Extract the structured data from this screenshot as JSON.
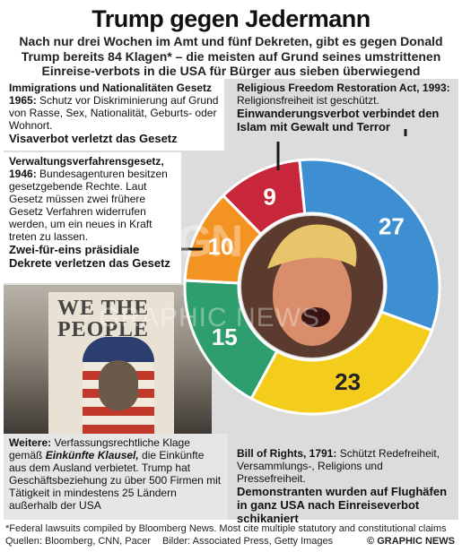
{
  "header": {
    "title": "Trump gegen Jedermann",
    "subtitle": "Nach nur drei Wochen im Amt und fünf Dekreten, gibt es gegen Donald Trump bereits 84 Klagen* – die meisten auf Grund seines umstrittenen Einreise-verbots in die USA für Bürger aus sieben überwiegend muslimischen Ländern"
  },
  "boxes": {
    "immigration": {
      "head": "Immigrations und Nationalitäten Gesetz 1965:",
      "body": " Schutz vor Diskriminierung auf Grund von Rasse, Sex, Nationalität, Geburts- oder Wohnort.",
      "verdict": "Visaverbot verletzt das Gesetz"
    },
    "religious": {
      "head": "Religious Freedom Restoration Act, 1993:",
      "body": " Religionsfreiheit ist geschützt.",
      "verdict": "Einwanderungsverbot verbindet den Islam mit Gewalt und Terror"
    },
    "admin": {
      "head": "Verwaltungsverfahrensgesetz, 1946:",
      "body": " Bundesagenturen besitzen gesetzgebende Rechte. Laut Gesetz müssen zwei frühere Gesetz Verfahren widerrufen werden, um ein neues in Kraft treten zu lassen.",
      "verdict": "Zwei-für-eins präsidiale Dekrete verletzen das Gesetz"
    },
    "further": {
      "head": "Weitere:",
      "body1": " Verfassungsrechtliche Klage gemäß ",
      "clause": "Einkünfte Klausel,",
      "body2": " die Einkünfte aus dem Ausland verbietet. Trump hat Geschäftsbeziehung zu über 500 Firmen mit Tätigkeit in mindestens 25 Ländern außerhalb der USA"
    },
    "rights": {
      "head": "Bill of Rights, 1791:",
      "body": " Schützt Redefreiheit, Versammlungs-, Religions und Pressefreiheit.",
      "verdict": "Demonstranten wurden auf Flughäfen in ganz USA nach Einreiseverbot schikaniert"
    }
  },
  "photo": {
    "poster_text": "WE THE PEOPLE"
  },
  "watermark": {
    "mark": "GN",
    "word": "GRAPHIC NEWS"
  },
  "footer": {
    "footnote": "*Federal lawsuits compiled by Bloomberg News. Most cite multiple statutory and constitutional claims",
    "sources": "Quellen: Bloomberg, CNN, Pacer",
    "pictures": "Bilder: Associated Press, Getty Images",
    "brand": "© GRAPHIC NEWS"
  },
  "chart_data": {
    "type": "pie",
    "title": "",
    "total": 84,
    "slices": [
      {
        "key": "religious",
        "value": 9,
        "color": "#c8263a"
      },
      {
        "key": "rights",
        "value": 27,
        "color": "#3d8fd1"
      },
      {
        "key": "further",
        "value": 23,
        "color": "#f3cc1c"
      },
      {
        "key": "admin",
        "value": 15,
        "color": "#2e9e6e"
      },
      {
        "key": "immigration",
        "value": 10,
        "color": "#f39322"
      }
    ],
    "colors": {
      "leader": "#1a1a1a",
      "hole": "#5a3b2e",
      "label": "#ffffff",
      "label_dark": "#222222"
    }
  }
}
